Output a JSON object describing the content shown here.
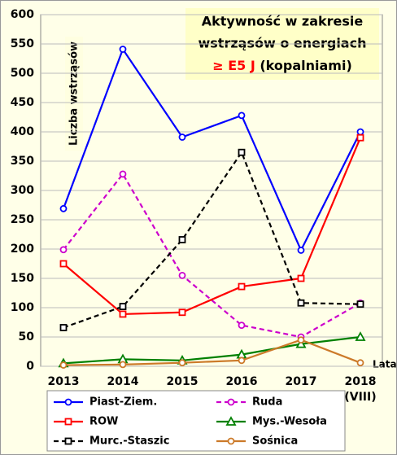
{
  "chart_data": {
    "type": "line",
    "title_lines": [
      "Aktywność w zakresie",
      "wstrząsów o energiach"
    ],
    "title_highlight": "≥ E5 J",
    "title_suffix": " (kopalniami)",
    "y_label": "Liczba wstrząsów",
    "x_label": "Lata",
    "categories": [
      "2013",
      "2014",
      "2015",
      "2016",
      "2017",
      "2018"
    ],
    "last_category_note": "(VIII)",
    "ylim": [
      0,
      600
    ],
    "yticks": [
      0,
      50,
      100,
      150,
      200,
      250,
      300,
      350,
      400,
      450,
      500,
      550,
      600
    ],
    "grid": true,
    "series": [
      {
        "name": "Piast-Ziem.",
        "color": "#0000ff",
        "marker": "circle",
        "dashed": false,
        "values": [
          269,
          541,
          391,
          428,
          198,
          400
        ]
      },
      {
        "name": "Ruda",
        "color": "#cc00cc",
        "marker": "circle",
        "dashed": true,
        "values": [
          199,
          328,
          155,
          70,
          50,
          108
        ]
      },
      {
        "name": "ROW",
        "color": "#ff0000",
        "marker": "square",
        "dashed": false,
        "values": [
          175,
          89,
          92,
          136,
          150,
          390
        ]
      },
      {
        "name": "Mys.-Wesoła",
        "color": "#008000",
        "marker": "triangle",
        "dashed": false,
        "values": [
          5,
          12,
          10,
          20,
          38,
          50
        ]
      },
      {
        "name": "Murc.-Staszic",
        "color": "#000000",
        "marker": "square",
        "dashed": true,
        "values": [
          66,
          102,
          216,
          365,
          108,
          106
        ]
      },
      {
        "name": "Sośnica",
        "color": "#cc7a29",
        "marker": "circle",
        "dashed": false,
        "values": [
          2,
          3,
          6,
          10,
          45,
          6
        ]
      }
    ]
  }
}
